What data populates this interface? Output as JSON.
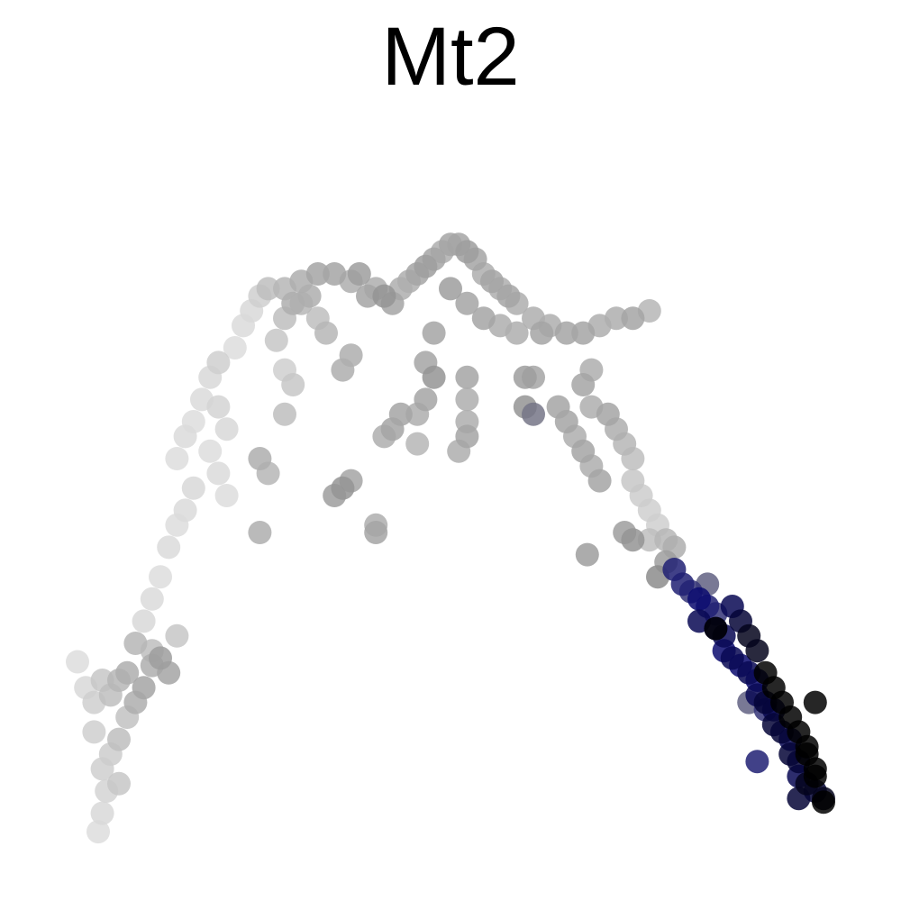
{
  "chart_data": {
    "type": "scatter",
    "title": "Mt2",
    "xlabel": "",
    "ylabel": "",
    "axes_visible": false,
    "grid": false,
    "legend": "none",
    "xlim": [
      0,
      100
    ],
    "ylim": [
      0,
      100
    ],
    "color_scale": {
      "low": "#e0e0e0",
      "mid": "#8c8c8c",
      "high_blue": "#0a0a6e",
      "max": "#000000"
    },
    "series": [
      {
        "points": [
          [
            7.5,
            4.5,
            0.02
          ],
          [
            8,
            7,
            0.05
          ],
          [
            8.5,
            10,
            0.08
          ],
          [
            8,
            13,
            0.1
          ],
          [
            9,
            15,
            0.12
          ],
          [
            10,
            11,
            0.15
          ],
          [
            10,
            17,
            0.2
          ],
          [
            11,
            20,
            0.18
          ],
          [
            7,
            18,
            0.1
          ],
          [
            5,
            27.5,
            0.02
          ],
          [
            6,
            24,
            0.05
          ],
          [
            7,
            22,
            0.1
          ],
          [
            8,
            25,
            0.15
          ],
          [
            9,
            23,
            0.2
          ],
          [
            10,
            25,
            0.25
          ],
          [
            11,
            26,
            0.3
          ],
          [
            12,
            22,
            0.3
          ],
          [
            13,
            24,
            0.35
          ],
          [
            14,
            27,
            0.3
          ],
          [
            15,
            28,
            0.4
          ],
          [
            16,
            26,
            0.35
          ],
          [
            12,
            30,
            0.25
          ],
          [
            14,
            29,
            0.2
          ],
          [
            17,
            31,
            0.15
          ],
          [
            13,
            33,
            0.05
          ],
          [
            14,
            36,
            0.03
          ],
          [
            15,
            39,
            0.02
          ],
          [
            16,
            43,
            0.03
          ],
          [
            17,
            46,
            0.02
          ],
          [
            18,
            48,
            0.03
          ],
          [
            19,
            51,
            0.05
          ],
          [
            17,
            55,
            0.02
          ],
          [
            18,
            58,
            0.03
          ],
          [
            19,
            60,
            0.02
          ],
          [
            20,
            63,
            0.03
          ],
          [
            21,
            66,
            0.05
          ],
          [
            22,
            68,
            0.1
          ],
          [
            22,
            62,
            0.08
          ],
          [
            23,
            59,
            0.05
          ],
          [
            21,
            56,
            0.02
          ],
          [
            22,
            53,
            0.03
          ],
          [
            23,
            50,
            0.02
          ],
          [
            24,
            70,
            0.02
          ],
          [
            25,
            73,
            0.03
          ],
          [
            26,
            75,
            0.05
          ],
          [
            27,
            77,
            0.1
          ],
          [
            28,
            78,
            0.2
          ],
          [
            30,
            78,
            0.25
          ],
          [
            31,
            76,
            0.3
          ],
          [
            32,
            79,
            0.3
          ],
          [
            33,
            77,
            0.3
          ],
          [
            34,
            80,
            0.35
          ],
          [
            36,
            80,
            0.35
          ],
          [
            38,
            79,
            0.3
          ],
          [
            39,
            80,
            0.4
          ],
          [
            40,
            77,
            0.35
          ],
          [
            41,
            78,
            0.3
          ],
          [
            42,
            77,
            0.45
          ],
          [
            43,
            76,
            0.35
          ],
          [
            44,
            78,
            0.3
          ],
          [
            45,
            79,
            0.3
          ],
          [
            46,
            80,
            0.35
          ],
          [
            47,
            81,
            0.4
          ],
          [
            48,
            82,
            0.35
          ],
          [
            49,
            83,
            0.3
          ],
          [
            50,
            84,
            0.35
          ],
          [
            51,
            84,
            0.35
          ],
          [
            52,
            83,
            0.4
          ],
          [
            53,
            82,
            0.35
          ],
          [
            54,
            80,
            0.3
          ],
          [
            55,
            79,
            0.35
          ],
          [
            56,
            78,
            0.3
          ],
          [
            57,
            77,
            0.35
          ],
          [
            58,
            76,
            0.3
          ],
          [
            60,
            74,
            0.3
          ],
          [
            61,
            72,
            0.35
          ],
          [
            62,
            73,
            0.3
          ],
          [
            64,
            72,
            0.35
          ],
          [
            66,
            72,
            0.35
          ],
          [
            68,
            73,
            0.3
          ],
          [
            70,
            74,
            0.3
          ],
          [
            72,
            74,
            0.35
          ],
          [
            74,
            75,
            0.25
          ],
          [
            50,
            78,
            0.4
          ],
          [
            52,
            76,
            0.35
          ],
          [
            54,
            74,
            0.35
          ],
          [
            56,
            73,
            0.3
          ],
          [
            58,
            72,
            0.3
          ],
          [
            48,
            72,
            0.35
          ],
          [
            47,
            68,
            0.35
          ],
          [
            48,
            66,
            0.45
          ],
          [
            47,
            63,
            0.35
          ],
          [
            46,
            61,
            0.3
          ],
          [
            46,
            57,
            0.25
          ],
          [
            52,
            66,
            0.35
          ],
          [
            52,
            63,
            0.3
          ],
          [
            52,
            60,
            0.3
          ],
          [
            52,
            58,
            0.35
          ],
          [
            51,
            56,
            0.3
          ],
          [
            44,
            61,
            0.35
          ],
          [
            43,
            59,
            0.35
          ],
          [
            42,
            58,
            0.3
          ],
          [
            37,
            67,
            0.3
          ],
          [
            38,
            69,
            0.3
          ],
          [
            35,
            72,
            0.25
          ],
          [
            34,
            74,
            0.2
          ],
          [
            32,
            76,
            0.25
          ],
          [
            30,
            74,
            0.2
          ],
          [
            29,
            71,
            0.15
          ],
          [
            30,
            67,
            0.1
          ],
          [
            31,
            65,
            0.15
          ],
          [
            30,
            61,
            0.2
          ],
          [
            28,
            53,
            0.25
          ],
          [
            27,
            55,
            0.3
          ],
          [
            38,
            52,
            0.35
          ],
          [
            37,
            51,
            0.45
          ],
          [
            36,
            50,
            0.4
          ],
          [
            41,
            45,
            0.35
          ],
          [
            41,
            46,
            0.3
          ],
          [
            27,
            45,
            0.3
          ],
          [
            59,
            66,
            0.4
          ],
          [
            60,
            66,
            0.35
          ],
          [
            60,
            61,
            0.55
          ],
          [
            59,
            62,
            0.45
          ],
          [
            63,
            62,
            0.35
          ],
          [
            64,
            60,
            0.35
          ],
          [
            65,
            58,
            0.3
          ],
          [
            66,
            56,
            0.35
          ],
          [
            67,
            54,
            0.3
          ],
          [
            68,
            52,
            0.35
          ],
          [
            69,
            61,
            0.35
          ],
          [
            67,
            62,
            0.3
          ],
          [
            66,
            65,
            0.35
          ],
          [
            67,
            67,
            0.3
          ],
          [
            70,
            59,
            0.3
          ],
          [
            71,
            57,
            0.25
          ],
          [
            72,
            55,
            0.2
          ],
          [
            72,
            52,
            0.15
          ],
          [
            73,
            50,
            0.12
          ],
          [
            74,
            48,
            0.1
          ],
          [
            75,
            46,
            0.1
          ],
          [
            74,
            44,
            0.2
          ],
          [
            72,
            44,
            0.45
          ],
          [
            71,
            45,
            0.4
          ],
          [
            66.5,
            42,
            0.4
          ],
          [
            76,
            44,
            0.25
          ],
          [
            76,
            41,
            0.4
          ],
          [
            75,
            39,
            0.5
          ],
          [
            77,
            43,
            0.3
          ],
          [
            77,
            40,
            0.75
          ],
          [
            78,
            38,
            0.75
          ],
          [
            79,
            37,
            0.7
          ],
          [
            80,
            36,
            0.8
          ],
          [
            81,
            35,
            0.75
          ],
          [
            82,
            34,
            0.7
          ],
          [
            82,
            32,
            0.8
          ],
          [
            83,
            31,
            0.85
          ],
          [
            83,
            29,
            0.8
          ],
          [
            84,
            28,
            0.85
          ],
          [
            85,
            27,
            0.8
          ],
          [
            86,
            26,
            0.85
          ],
          [
            87,
            25,
            0.8
          ],
          [
            87,
            23,
            0.85
          ],
          [
            88,
            22,
            0.9
          ],
          [
            89,
            21,
            0.85
          ],
          [
            89,
            19,
            0.9
          ],
          [
            90,
            18,
            0.9
          ],
          [
            91,
            17,
            0.85
          ],
          [
            91,
            15,
            0.9
          ],
          [
            92,
            14,
            0.9
          ],
          [
            92,
            12,
            0.85
          ],
          [
            93,
            11,
            0.95
          ],
          [
            94,
            10,
            0.9
          ],
          [
            95,
            9,
            0.95
          ],
          [
            94,
            13,
            1.0
          ],
          [
            93,
            15,
            1.0
          ],
          [
            92,
            18,
            1.0
          ],
          [
            91,
            20,
            1.0
          ],
          [
            90,
            22,
            1.0
          ],
          [
            89,
            24,
            1.0
          ],
          [
            88,
            26,
            1.0
          ],
          [
            87,
            29,
            0.95
          ],
          [
            86,
            31,
            0.95
          ],
          [
            85,
            33,
            0.9
          ],
          [
            84,
            35,
            0.85
          ],
          [
            82,
            32,
            1.0
          ],
          [
            93,
            16,
            1.0
          ],
          [
            94,
            12,
            1.0
          ],
          [
            95,
            8.5,
            1.0
          ],
          [
            92,
            9,
            0.9
          ],
          [
            94,
            22,
            1.0
          ],
          [
            87,
            14,
            0.75
          ],
          [
            88,
            21,
            0.7
          ],
          [
            86,
            22,
            0.6
          ],
          [
            81,
            38,
            0.6
          ],
          [
            80,
            33,
            0.85
          ]
        ]
      }
    ]
  }
}
